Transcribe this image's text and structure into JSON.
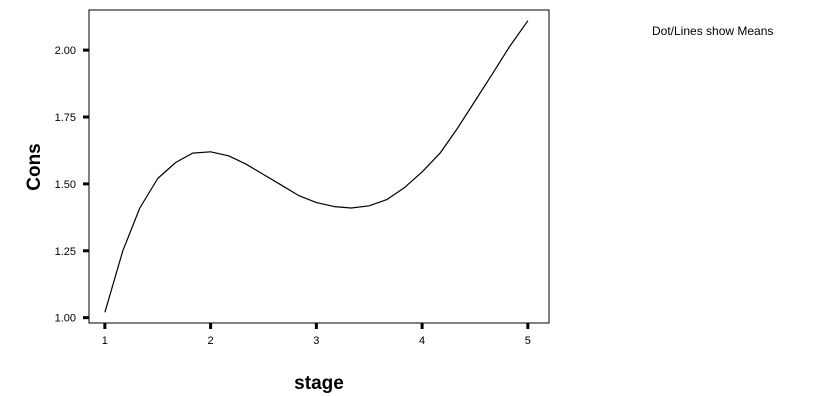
{
  "chart_data": {
    "type": "line",
    "title": "",
    "xlabel": "stage",
    "ylabel": "Cons",
    "annotation": "Dot/Lines show Means",
    "xlim": [
      0.85,
      5.2
    ],
    "ylim": [
      0.98,
      2.15
    ],
    "x_ticks": [
      1,
      2,
      3,
      4,
      5
    ],
    "x_tick_labels": [
      "1",
      "2",
      "3",
      "4",
      "5"
    ],
    "y_ticks": [
      1.0,
      1.25,
      1.5,
      1.75,
      2.0
    ],
    "y_tick_labels": [
      "1.00",
      "1.25",
      "1.50",
      "1.75",
      "2.00"
    ],
    "grid": false,
    "legend": "none",
    "series": [
      {
        "x": [
          1.0,
          1.17,
          1.33,
          1.5,
          1.67,
          1.83,
          2.0,
          2.17,
          2.33,
          2.5,
          2.67,
          2.83,
          3.0,
          3.17,
          3.33,
          3.5,
          3.67,
          3.83,
          4.0,
          4.17,
          4.33,
          4.5,
          4.67,
          4.83,
          5.0
        ],
        "values": [
          1.02,
          1.25,
          1.41,
          1.52,
          1.58,
          1.615,
          1.62,
          1.605,
          1.575,
          1.535,
          1.495,
          1.457,
          1.43,
          1.415,
          1.41,
          1.418,
          1.442,
          1.485,
          1.545,
          1.615,
          1.705,
          1.81,
          1.915,
          2.015,
          2.11
        ],
        "color": "#000000"
      }
    ]
  }
}
